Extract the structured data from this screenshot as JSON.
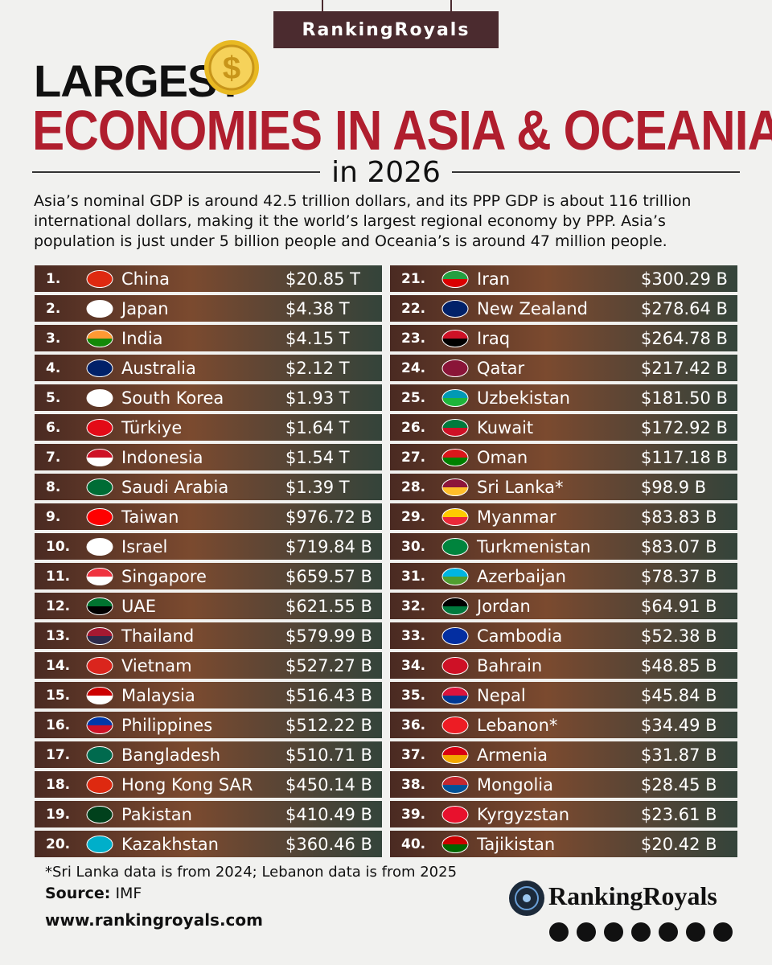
{
  "header": {
    "brand": "RankingRoyals",
    "title_line1": "LARGEST",
    "title_line2": "ECONOMIES IN ASIA & OCEANIA",
    "title_line3": "in 2026",
    "intro": "Asia’s nominal GDP is around 42.5 trillion dollars, and its PPP GDP is about 116 trillion international dollars, making it the world’s largest regional economy by PPP. Asia’s population is just under 5 billion people and Oceania’s is around 47 million people."
  },
  "table": {
    "rows": [
      [
        "1.",
        "China",
        "$20.85 T"
      ],
      [
        "2.",
        "Japan",
        "$4.38 T"
      ],
      [
        "3.",
        "India",
        "$4.15 T"
      ],
      [
        "4.",
        "Australia",
        "$2.12 T"
      ],
      [
        "5.",
        "South Korea",
        "$1.93 T"
      ],
      [
        "6.",
        "Türkiye",
        "$1.64 T"
      ],
      [
        "7.",
        "Indonesia",
        "$1.54 T"
      ],
      [
        "8.",
        "Saudi Arabia",
        "$1.39 T"
      ],
      [
        "9.",
        "Taiwan",
        "$976.72 B"
      ],
      [
        "10.",
        "Israel",
        "$719.84 B"
      ],
      [
        "11.",
        "Singapore",
        "$659.57 B"
      ],
      [
        "12.",
        "UAE",
        "$621.55 B"
      ],
      [
        "13.",
        "Thailand",
        "$579.99 B"
      ],
      [
        "14.",
        "Vietnam",
        "$527.27 B"
      ],
      [
        "15.",
        "Malaysia",
        "$516.43 B"
      ],
      [
        "16.",
        "Philippines",
        "$512.22 B"
      ],
      [
        "17.",
        "Bangladesh",
        "$510.71 B"
      ],
      [
        "18.",
        "Hong Kong SAR",
        "$450.14 B"
      ],
      [
        "19.",
        "Pakistan",
        "$410.49 B"
      ],
      [
        "20.",
        "Kazakhstan",
        "$360.46 B"
      ],
      [
        "21.",
        "Iran",
        "$300.29 B"
      ],
      [
        "22.",
        "New Zealand",
        "$278.64 B"
      ],
      [
        "23.",
        "Iraq",
        "$264.78 B"
      ],
      [
        "24.",
        "Qatar",
        "$217.42 B"
      ],
      [
        "25.",
        "Uzbekistan",
        "$181.50 B"
      ],
      [
        "26.",
        "Kuwait",
        "$172.92 B"
      ],
      [
        "27.",
        "Oman",
        "$117.18 B"
      ],
      [
        "28.",
        "Sri Lanka*",
        "$98.9 B"
      ],
      [
        "29.",
        "Myanmar",
        "$83.83 B"
      ],
      [
        "30.",
        "Turkmenistan",
        "$83.07 B"
      ],
      [
        "31.",
        "Azerbaijan",
        "$78.37 B"
      ],
      [
        "32.",
        "Jordan",
        "$64.91 B"
      ],
      [
        "33.",
        "Cambodia",
        "$52.38 B"
      ],
      [
        "34.",
        "Bahrain",
        "$48.85 B"
      ],
      [
        "35.",
        "Nepal",
        "$45.84 B"
      ],
      [
        "36.",
        "Lebanon*",
        "$34.49 B"
      ],
      [
        "37.",
        "Armenia",
        "$31.87 B"
      ],
      [
        "38.",
        "Mongolia",
        "$28.45 B"
      ],
      [
        "39.",
        "Kyrgyzstan",
        "$23.61 B"
      ],
      [
        "40.",
        "Tajikistan",
        "$20.42 B"
      ]
    ]
  },
  "footer": {
    "footnote": "*Sri Lanka data is from 2024; Lebanon data is from 2025",
    "source_label": "Source:",
    "source": "IMF",
    "website": "www.rankingroyals.com",
    "brand": "RankingRoyals"
  }
}
